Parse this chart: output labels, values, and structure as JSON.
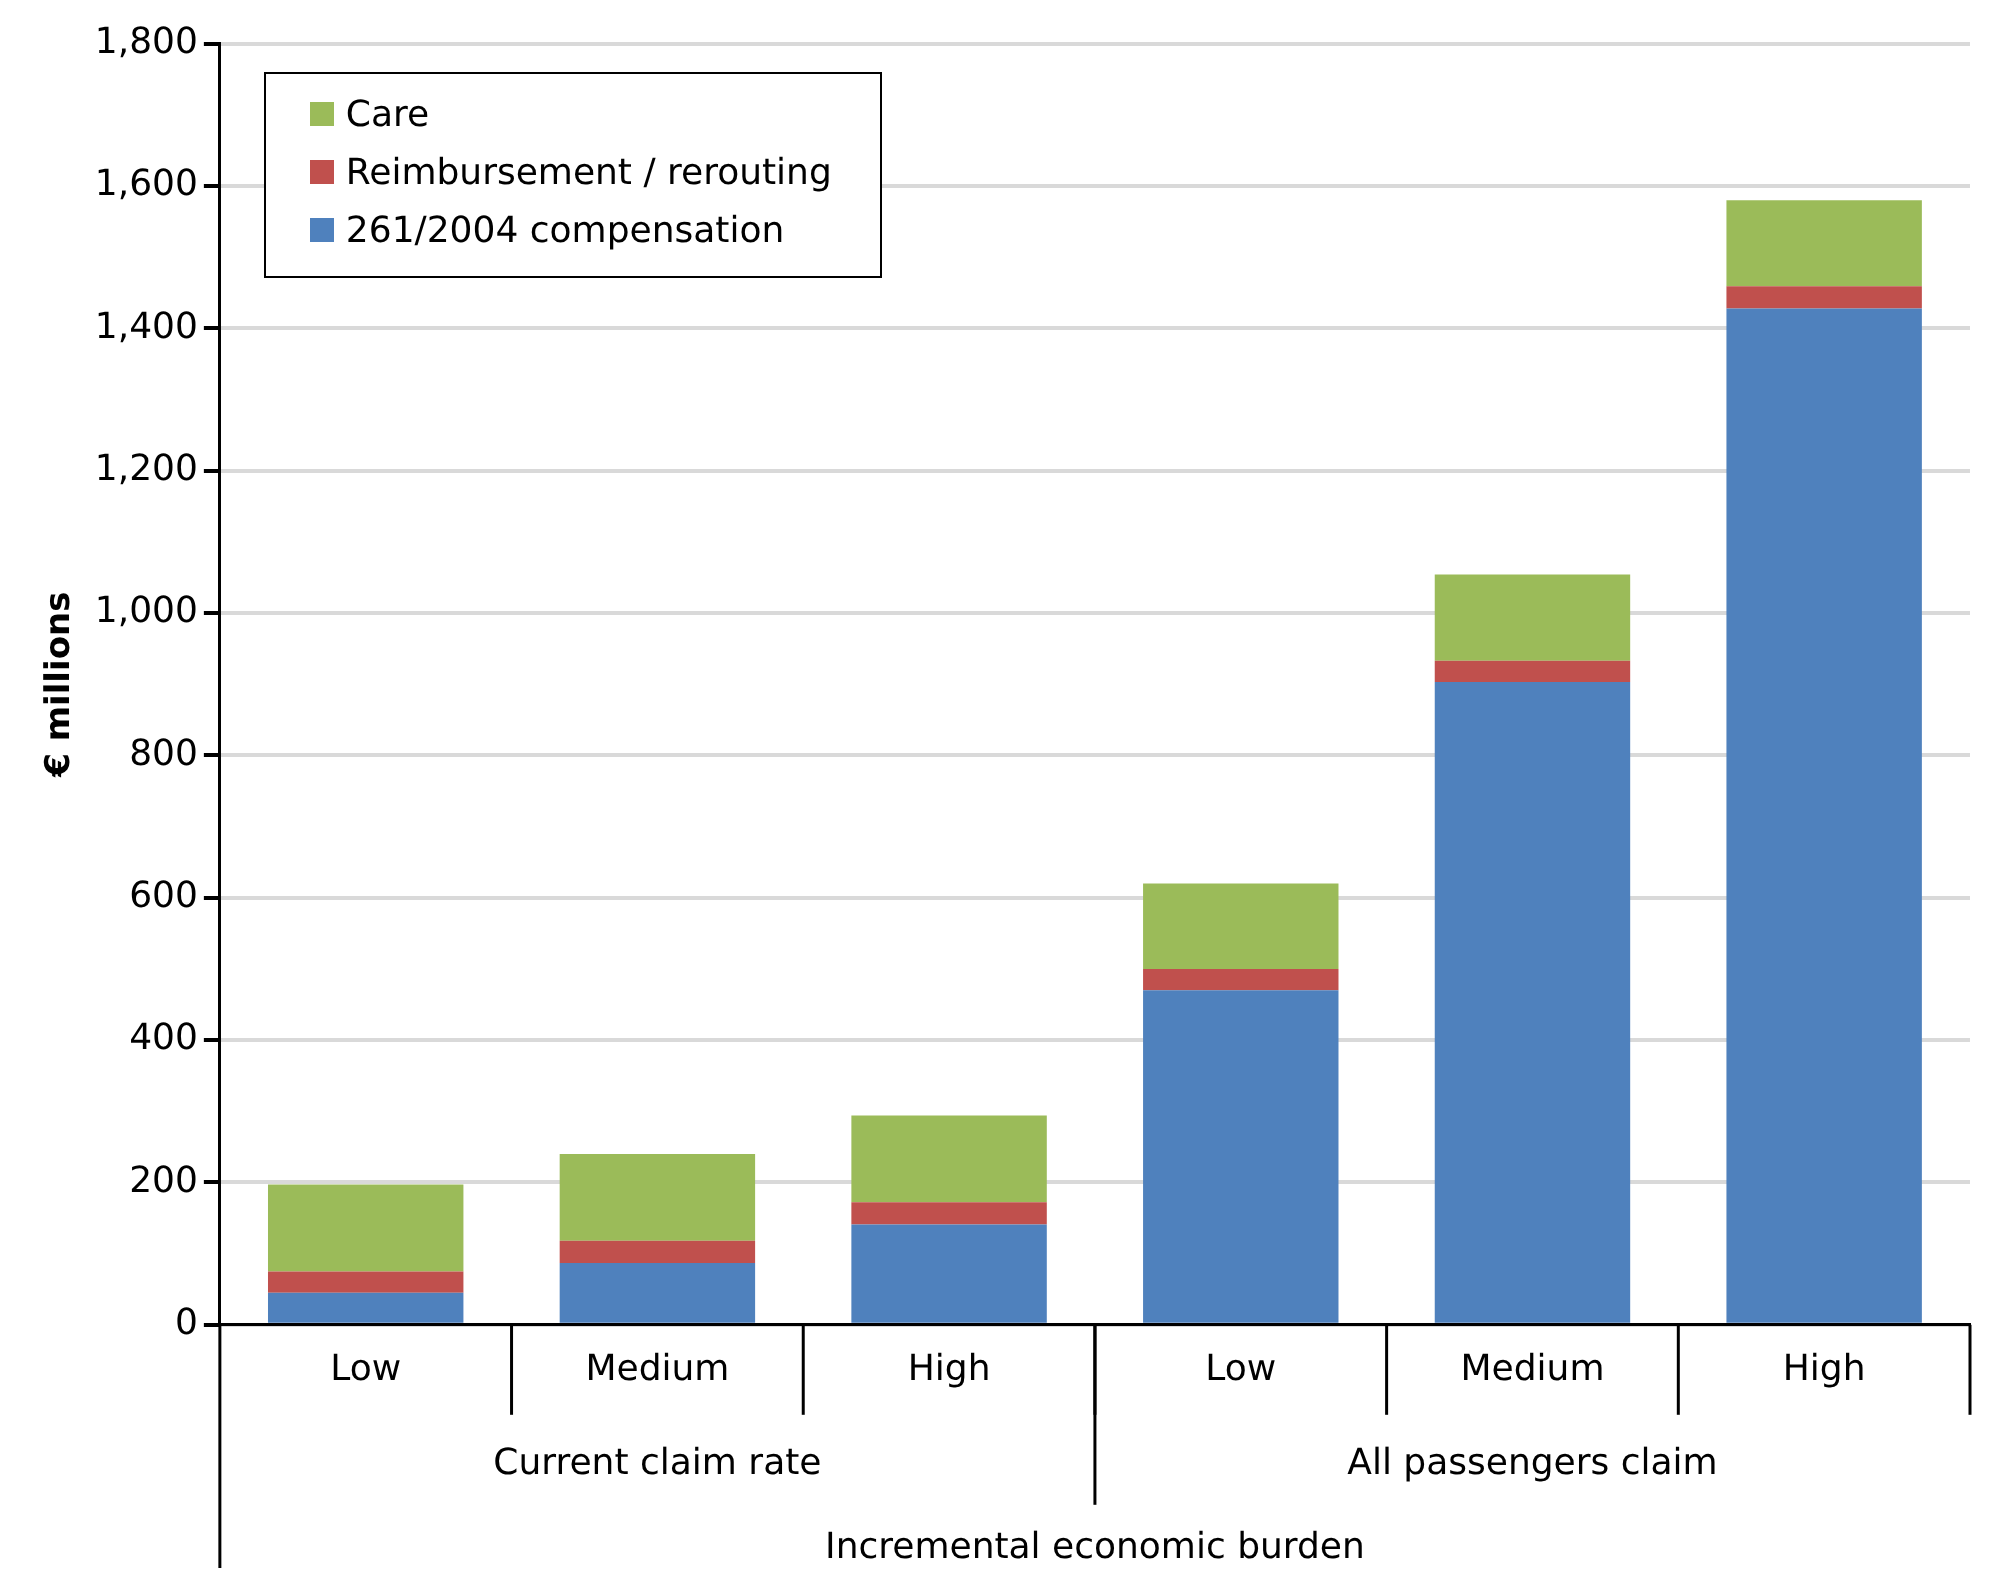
{
  "chart_data": {
    "type": "bar",
    "stacked": true,
    "ylabel": "€ millions",
    "xlabel": "Incremental economic burden",
    "categories": [
      "Low",
      "Medium",
      "High",
      "Low",
      "Medium",
      "High"
    ],
    "annotations": [
      "Current claim rate",
      "All passengers claim"
    ],
    "series": [
      {
        "name": "261/2004 compensation",
        "color": "#4f81bd",
        "values": [
          45,
          87,
          141,
          470,
          903,
          1428
        ]
      },
      {
        "name": "Reimbursement / rerouting",
        "color": "#c0504d",
        "values": [
          30,
          31,
          31,
          30,
          30,
          31
        ]
      },
      {
        "name": "Care",
        "color": "#9bbb59",
        "values": [
          122,
          122,
          122,
          120,
          121,
          121
        ]
      }
    ],
    "ylim": [
      0,
      1800
    ],
    "yticks": [
      0,
      {
        "value": 200,
        "label": "200"
      },
      {
        "value": 400,
        "label": "400"
      },
      {
        "value": 600,
        "label": "600"
      },
      {
        "value": 800,
        "label": "800"
      },
      {
        "value": 1000,
        "label": "1,000"
      },
      {
        "value": 1200,
        "label": "1,200"
      },
      {
        "value": 1400,
        "label": "1,400"
      },
      {
        "value": 1600,
        "label": "1,600"
      },
      {
        "value": 1800,
        "label": "1,800"
      }
    ],
    "grid": "y",
    "legend": "top left"
  }
}
